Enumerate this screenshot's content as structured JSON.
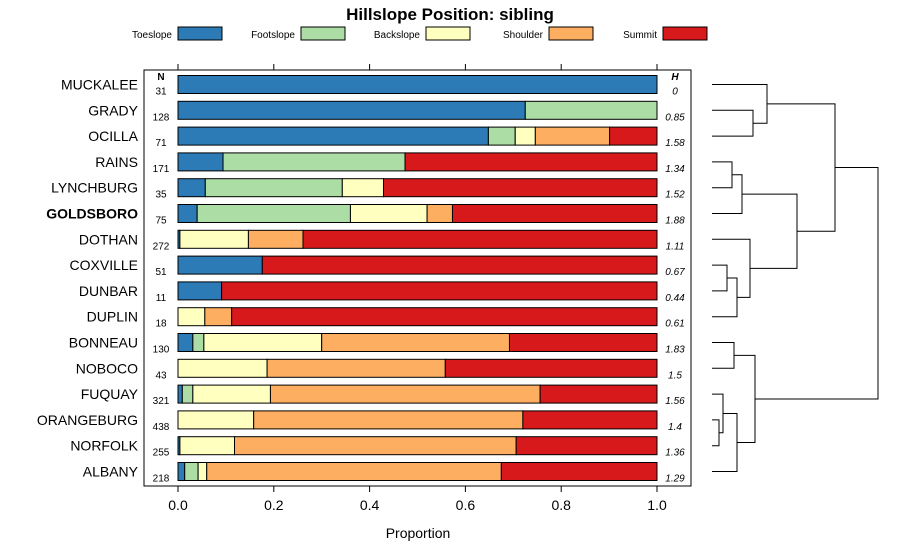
{
  "chart_data": {
    "type": "bar",
    "stacked": true,
    "orientation": "horizontal",
    "title": "Hillslope Position: sibling",
    "xlabel": "Proportion",
    "ylabel": "",
    "xlim": [
      0,
      1
    ],
    "xticks": [
      "0.0",
      "0.2",
      "0.4",
      "0.6",
      "0.8",
      "1.0"
    ],
    "n_header": "N",
    "h_header": "H",
    "highlight": "GOLDSBORO",
    "legend": [
      {
        "name": "Toeslope",
        "color": "#2c7bb6"
      },
      {
        "name": "Footslope",
        "color": "#abdda4"
      },
      {
        "name": "Backslope",
        "color": "#ffffbf"
      },
      {
        "name": "Shoulder",
        "color": "#fdae61"
      },
      {
        "name": "Summit",
        "color": "#d7191c"
      }
    ],
    "rows": [
      {
        "label": "MUCKALEE",
        "n": "31",
        "h": "0",
        "values": [
          1.0,
          0,
          0,
          0,
          0
        ]
      },
      {
        "label": "GRADY",
        "n": "128",
        "h": "0.85",
        "values": [
          0.725,
          0.275,
          0,
          0,
          0
        ]
      },
      {
        "label": "OCILLA",
        "n": "71",
        "h": "1.58",
        "values": [
          0.648,
          0.056,
          0.042,
          0.155,
          0.099
        ]
      },
      {
        "label": "RAINS",
        "n": "171",
        "h": "1.34",
        "values": [
          0.094,
          0.38,
          0,
          0,
          0.526
        ]
      },
      {
        "label": "LYNCHBURG",
        "n": "35",
        "h": "1.52",
        "values": [
          0.057,
          0.286,
          0.086,
          0,
          0.571
        ]
      },
      {
        "label": "GOLDSBORO",
        "n": "75",
        "h": "1.88",
        "values": [
          0.04,
          0.32,
          0.16,
          0.053,
          0.427
        ]
      },
      {
        "label": "DOTHAN",
        "n": "272",
        "h": "1.11",
        "values": [
          0.004,
          0,
          0.143,
          0.114,
          0.739
        ]
      },
      {
        "label": "COXVILLE",
        "n": "51",
        "h": "0.67",
        "values": [
          0.176,
          0,
          0,
          0,
          0.824
        ]
      },
      {
        "label": "DUNBAR",
        "n": "11",
        "h": "0.44",
        "values": [
          0.091,
          0,
          0,
          0,
          0.909
        ]
      },
      {
        "label": "DUPLIN",
        "n": "18",
        "h": "0.61",
        "values": [
          0,
          0,
          0.056,
          0.056,
          0.888
        ]
      },
      {
        "label": "BONNEAU",
        "n": "130",
        "h": "1.83",
        "values": [
          0.031,
          0.023,
          0.246,
          0.392,
          0.308
        ]
      },
      {
        "label": "NOBOCO",
        "n": "43",
        "h": "1.5",
        "values": [
          0,
          0,
          0.186,
          0.372,
          0.442
        ]
      },
      {
        "label": "FUQUAY",
        "n": "321",
        "h": "1.56",
        "values": [
          0.009,
          0.022,
          0.162,
          0.563,
          0.244
        ]
      },
      {
        "label": "ORANGEBURG",
        "n": "438",
        "h": "1.4",
        "values": [
          0,
          0,
          0.158,
          0.562,
          0.28
        ]
      },
      {
        "label": "NORFOLK",
        "n": "255",
        "h": "1.36",
        "values": [
          0.004,
          0,
          0.114,
          0.588,
          0.294
        ]
      },
      {
        "label": "ALBANY",
        "n": "218",
        "h": "1.29",
        "values": [
          0.014,
          0.028,
          0.018,
          0.615,
          0.325
        ]
      }
    ]
  }
}
